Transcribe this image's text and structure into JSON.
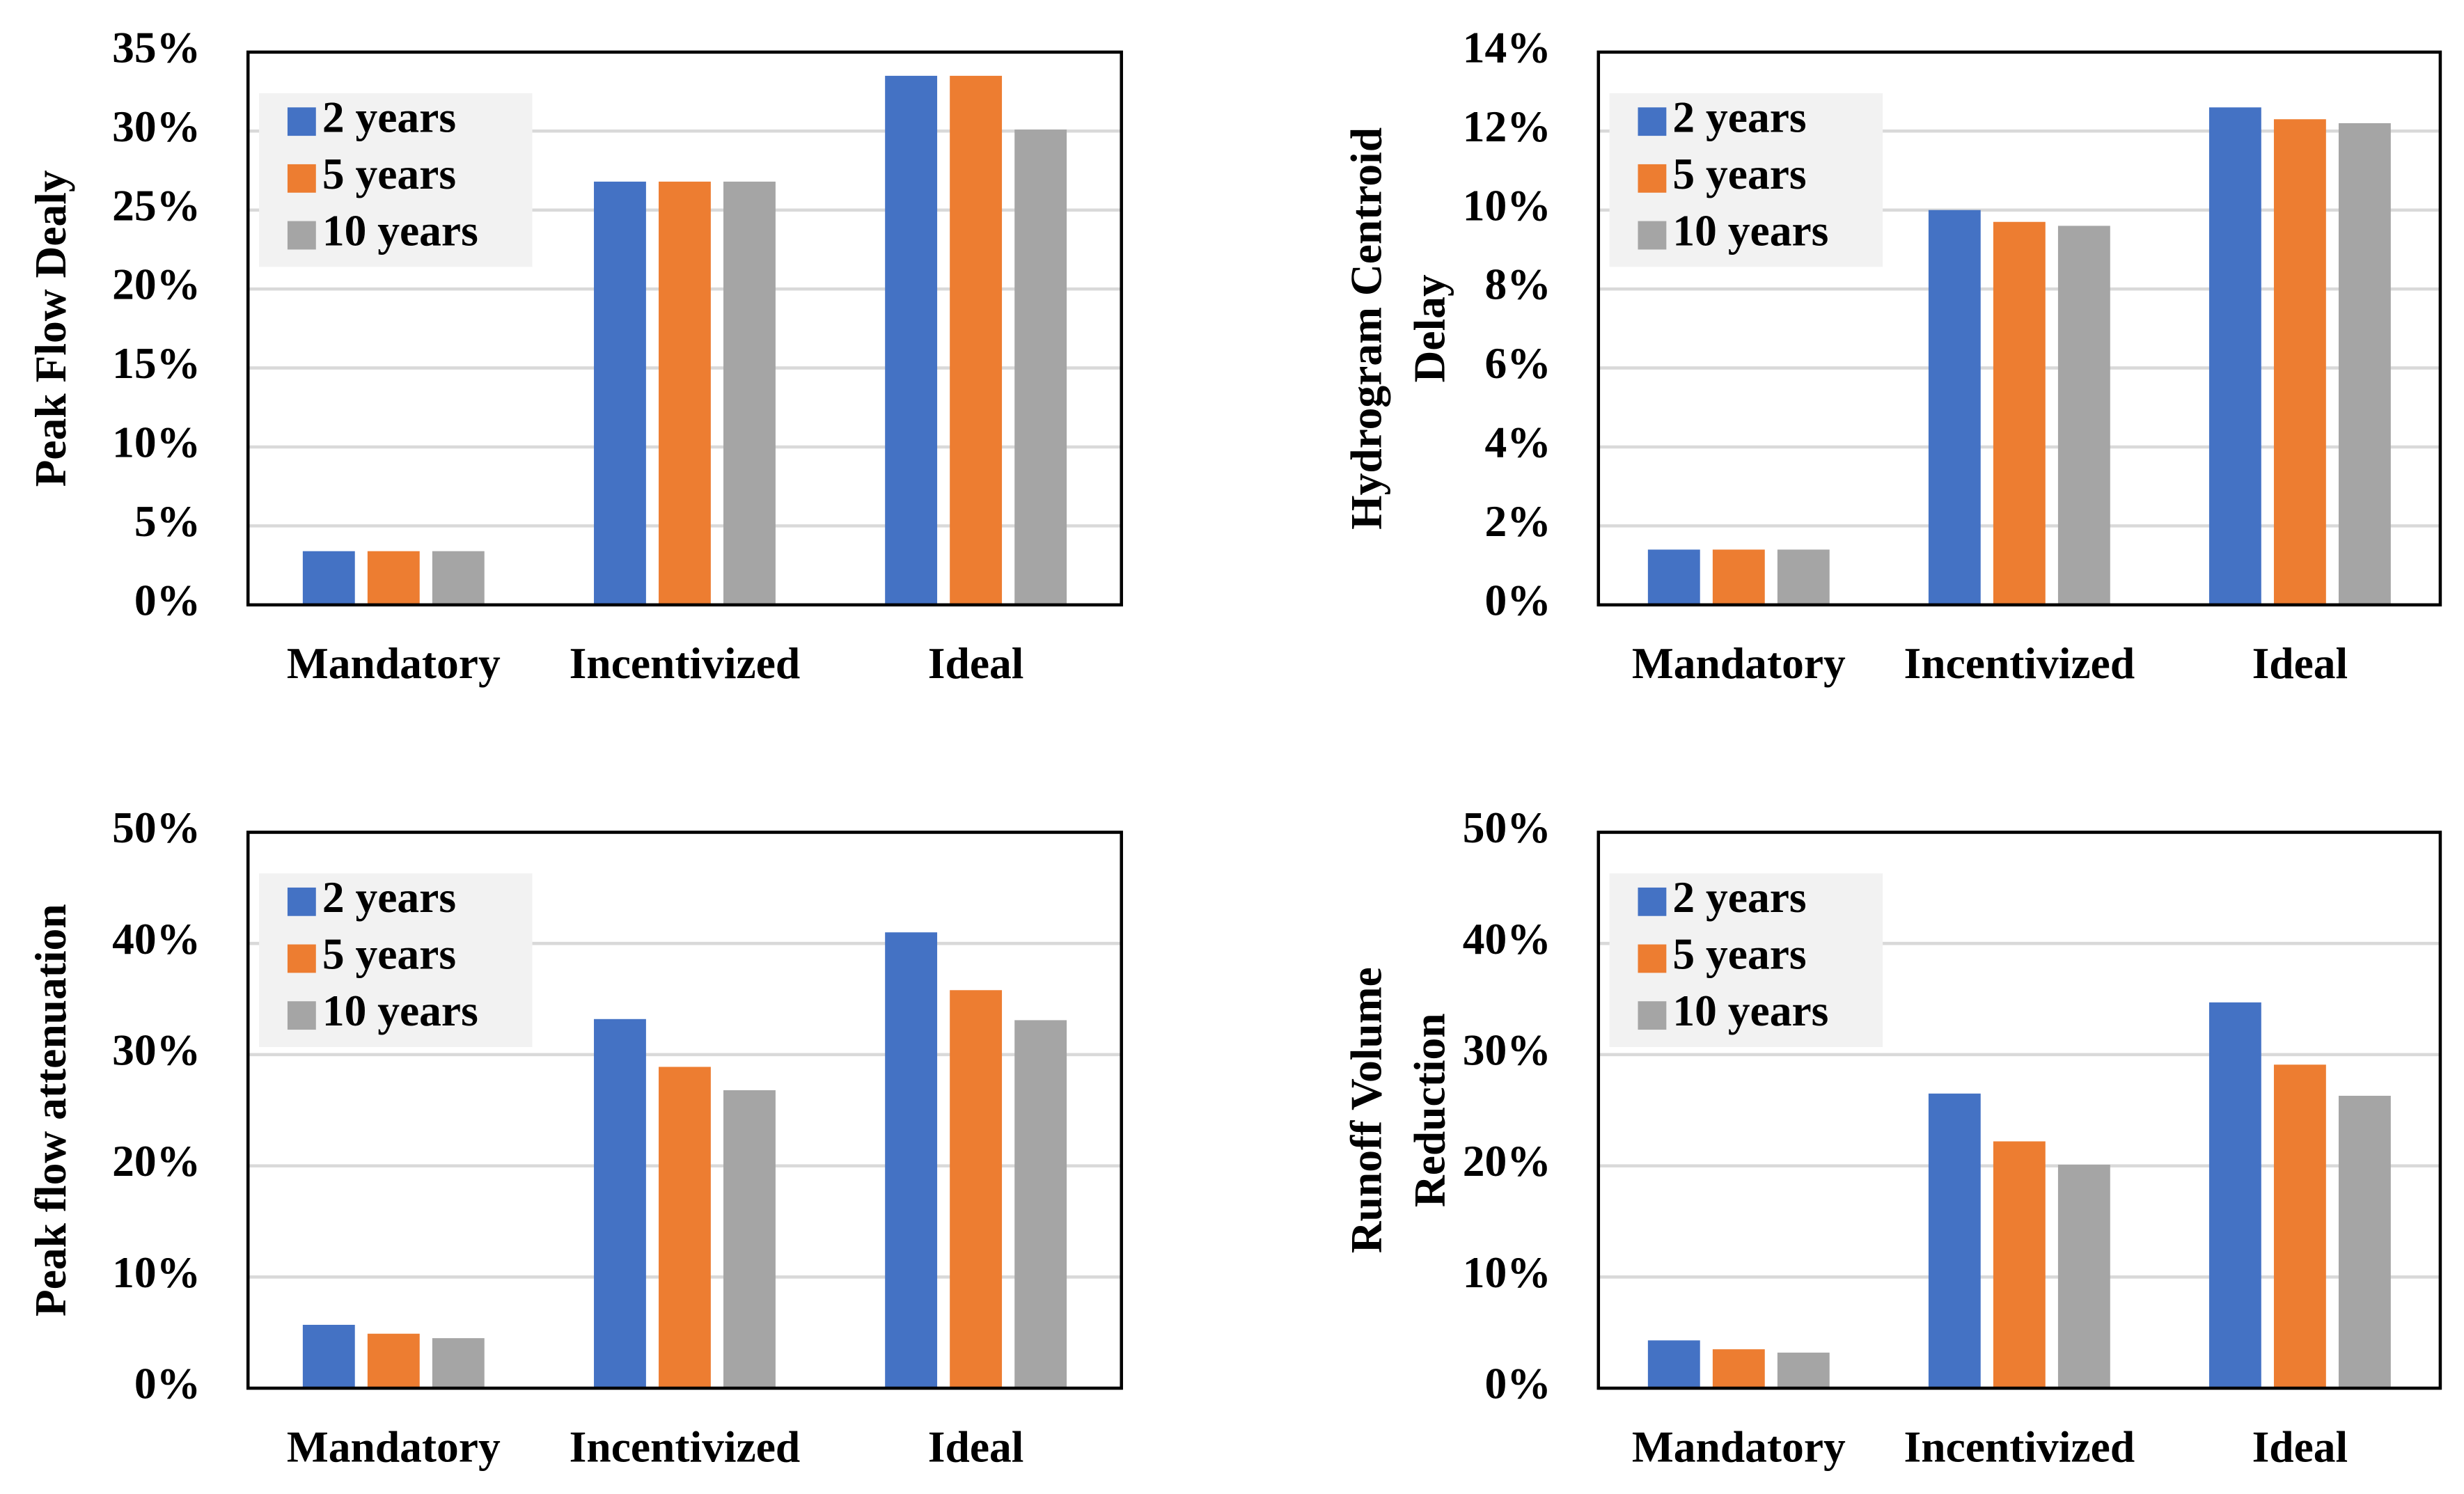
{
  "chart_data": [
    {
      "type": "bar",
      "y_label": [
        "Peak Flow Dealy"
      ],
      "categories": [
        "Mandatory",
        "Incentivized",
        "Ideal"
      ],
      "series": [
        {
          "name": "2 years",
          "color": "#4472c4",
          "values": [
            3.4,
            26.8,
            33.5
          ]
        },
        {
          "name": "5 years",
          "color": "#ed7d31",
          "values": [
            3.4,
            26.8,
            33.5
          ]
        },
        {
          "name": "10 years",
          "color": "#a5a5a5",
          "values": [
            3.4,
            26.8,
            30.1
          ]
        }
      ],
      "ylim": [
        0,
        35
      ],
      "yticks": [
        {
          "value": 0,
          "label": "0%"
        },
        {
          "value": 5,
          "label": "5%"
        },
        {
          "value": 10,
          "label": "10%"
        },
        {
          "value": 15,
          "label": "15%"
        },
        {
          "value": 20,
          "label": "20%"
        },
        {
          "value": 25,
          "label": "25%"
        },
        {
          "value": 30,
          "label": "30%"
        },
        {
          "value": 35,
          "label": "35%"
        }
      ],
      "grid": true,
      "legend": "upper left"
    },
    {
      "type": "bar",
      "y_label": [
        "Hydrogram Centroid",
        "Delay"
      ],
      "categories": [
        "Mandatory",
        "Incentivized",
        "Ideal"
      ],
      "series": [
        {
          "name": "2 years",
          "color": "#4472c4",
          "values": [
            1.4,
            10.0,
            12.6
          ]
        },
        {
          "name": "5 years",
          "color": "#ed7d31",
          "values": [
            1.4,
            9.7,
            12.3
          ]
        },
        {
          "name": "10 years",
          "color": "#a5a5a5",
          "values": [
            1.4,
            9.6,
            12.2
          ]
        }
      ],
      "ylim": [
        0,
        14
      ],
      "yticks": [
        {
          "value": 0,
          "label": "0%"
        },
        {
          "value": 2,
          "label": "2%"
        },
        {
          "value": 4,
          "label": "4%"
        },
        {
          "value": 6,
          "label": "6%"
        },
        {
          "value": 8,
          "label": "8%"
        },
        {
          "value": 10,
          "label": "10%"
        },
        {
          "value": 12,
          "label": "12%"
        },
        {
          "value": 14,
          "label": "14%"
        }
      ],
      "grid": true,
      "legend": "upper left"
    },
    {
      "type": "bar",
      "y_label": [
        "Peak flow attenuation"
      ],
      "categories": [
        "Mandatory",
        "Incentivized",
        "Ideal"
      ],
      "series": [
        {
          "name": "2 years",
          "color": "#4472c4",
          "values": [
            5.7,
            33.2,
            41.0
          ]
        },
        {
          "name": "5 years",
          "color": "#ed7d31",
          "values": [
            4.9,
            28.9,
            35.8
          ]
        },
        {
          "name": "10 years",
          "color": "#a5a5a5",
          "values": [
            4.5,
            26.8,
            33.1
          ]
        }
      ],
      "ylim": [
        0,
        50
      ],
      "yticks": [
        {
          "value": 0,
          "label": "0%"
        },
        {
          "value": 10,
          "label": "10%"
        },
        {
          "value": 20,
          "label": "20%"
        },
        {
          "value": 30,
          "label": "30%"
        },
        {
          "value": 40,
          "label": "40%"
        },
        {
          "value": 50,
          "label": "50%"
        }
      ],
      "grid": true,
      "legend": "upper left"
    },
    {
      "type": "bar",
      "y_label": [
        "Runoff Volume",
        "Reduction"
      ],
      "categories": [
        "Mandatory",
        "Incentivized",
        "Ideal"
      ],
      "series": [
        {
          "name": "2 years",
          "color": "#4472c4",
          "values": [
            4.3,
            26.5,
            34.7
          ]
        },
        {
          "name": "5 years",
          "color": "#ed7d31",
          "values": [
            3.5,
            22.2,
            29.1
          ]
        },
        {
          "name": "10 years",
          "color": "#a5a5a5",
          "values": [
            3.2,
            20.1,
            26.3
          ]
        }
      ],
      "ylim": [
        0,
        50
      ],
      "yticks": [
        {
          "value": 0,
          "label": "0%"
        },
        {
          "value": 10,
          "label": "10%"
        },
        {
          "value": 20,
          "label": "20%"
        },
        {
          "value": 30,
          "label": "30%"
        },
        {
          "value": 40,
          "label": "40%"
        },
        {
          "value": 50,
          "label": "50%"
        }
      ],
      "grid": true,
      "legend": "upper left"
    }
  ]
}
